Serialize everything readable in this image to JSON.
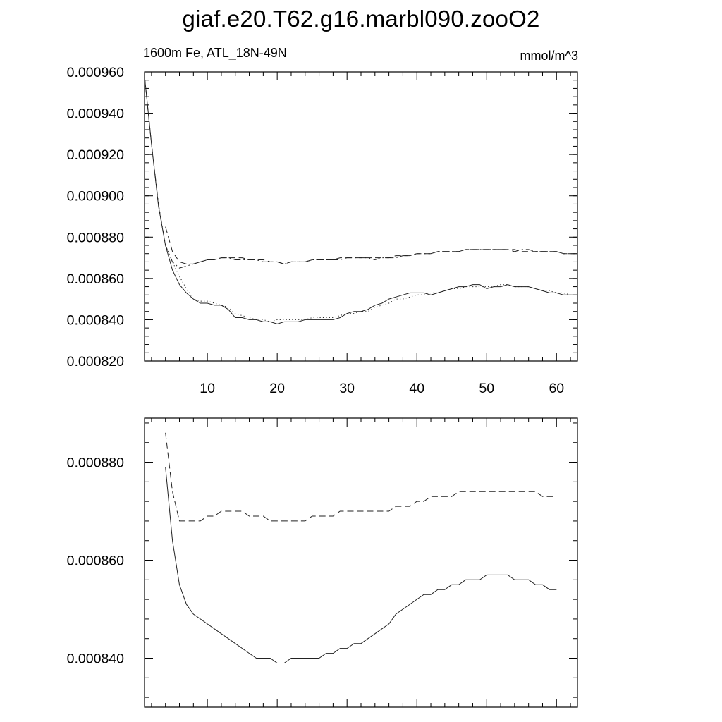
{
  "title": "giaf.e20.T62.g16.marbl090.zooO2",
  "subtitle_left": "1600m Fe, ATL_18N-49N",
  "subtitle_right": "mmol/m^3",
  "chart_data": [
    {
      "type": "line",
      "panel": "top",
      "xlim": [
        1,
        63
      ],
      "ylim": [
        0.00082,
        0.00096
      ],
      "x_ticks": [
        10,
        20,
        30,
        40,
        50,
        60
      ],
      "x_tick_labels": [
        "10",
        "20",
        "30",
        "40",
        "50",
        "60"
      ],
      "y_ticks": [
        0.00082,
        0.00084,
        0.00086,
        0.00088,
        0.0009,
        0.00092,
        0.00094,
        0.00096
      ],
      "y_tick_labels": [
        "0.000820",
        "0.000840",
        "0.000860",
        "0.000880",
        "0.000900",
        "0.000920",
        "0.000940",
        "0.000960"
      ],
      "series": [
        {
          "style": "solid",
          "x": [
            1,
            2,
            3,
            4,
            5,
            6,
            7,
            8,
            9,
            10,
            11,
            12,
            13,
            14,
            15,
            16,
            17,
            18,
            19,
            20,
            21,
            22,
            23,
            24,
            25,
            26,
            27,
            28,
            29,
            30,
            31,
            32,
            33,
            34,
            35,
            36,
            37,
            38,
            39,
            40,
            41,
            42,
            43,
            44,
            45,
            46,
            47,
            48,
            49,
            50,
            51,
            52,
            53,
            54,
            55,
            56,
            57,
            58,
            59,
            60,
            61,
            62,
            63
          ],
          "values": [
            0.000958,
            0.000925,
            0.000895,
            0.000876,
            0.000864,
            0.000857,
            0.000853,
            0.00085,
            0.000848,
            0.000848,
            0.000847,
            0.000847,
            0.000845,
            0.000841,
            0.000841,
            0.00084,
            0.00084,
            0.000839,
            0.000839,
            0.000838,
            0.000839,
            0.000839,
            0.000839,
            0.00084,
            0.00084,
            0.00084,
            0.00084,
            0.00084,
            0.000841,
            0.000843,
            0.000844,
            0.000844,
            0.000845,
            0.000847,
            0.000848,
            0.00085,
            0.000851,
            0.000852,
            0.000853,
            0.000853,
            0.000853,
            0.000852,
            0.000853,
            0.000854,
            0.000855,
            0.000856,
            0.000856,
            0.000857,
            0.000857,
            0.000855,
            0.000856,
            0.000856,
            0.000857,
            0.000856,
            0.000856,
            0.000856,
            0.000855,
            0.000854,
            0.000853,
            0.000853,
            0.000852,
            0.000852,
            0.000852
          ]
        },
        {
          "style": "dotted",
          "x": [
            4,
            5,
            6,
            7,
            8,
            9,
            10,
            11,
            12,
            13,
            14,
            15,
            16,
            17,
            18,
            19,
            20,
            21,
            22,
            23,
            24,
            25,
            26,
            27,
            28,
            29,
            30,
            31,
            32,
            33,
            34,
            35,
            36,
            37,
            38,
            39,
            40,
            41,
            42,
            43,
            44,
            45,
            46,
            47,
            48,
            49,
            50,
            51,
            52,
            53,
            54,
            55,
            56,
            57,
            58,
            59,
            60,
            61,
            62
          ],
          "values": [
            0.000876,
            0.000868,
            0.000861,
            0.000855,
            0.00085,
            0.000849,
            0.000849,
            0.000848,
            0.000847,
            0.000846,
            0.000843,
            0.000842,
            0.000841,
            0.00084,
            0.00084,
            0.000839,
            0.00084,
            0.00084,
            0.00084,
            0.00084,
            0.00084,
            0.000841,
            0.000841,
            0.000841,
            0.000841,
            0.000842,
            0.000843,
            0.000843,
            0.000844,
            0.000844,
            0.000846,
            0.000847,
            0.000848,
            0.00085,
            0.00085,
            0.000851,
            0.000852,
            0.000852,
            0.000853,
            0.000853,
            0.000854,
            0.000855,
            0.000855,
            0.000856,
            0.000856,
            0.000856,
            0.000856,
            0.000856,
            0.000857,
            0.000857,
            0.000856,
            0.000856,
            0.000856,
            0.000855,
            0.000854,
            0.000854,
            0.000853,
            0.000853,
            0.000852
          ]
        },
        {
          "style": "dashed",
          "x": [
            4,
            5,
            6,
            7,
            8,
            9,
            10,
            11,
            12,
            13,
            14,
            15,
            16,
            17,
            18,
            19,
            20,
            21,
            22,
            23,
            24,
            25,
            26,
            27,
            28,
            29,
            30,
            31,
            32,
            33,
            34,
            35,
            36,
            37,
            38,
            39,
            40,
            41,
            42,
            43,
            44,
            45,
            46,
            47,
            48,
            49,
            50,
            51,
            52,
            53,
            54,
            55,
            56,
            57,
            58,
            59,
            60,
            61,
            62,
            63
          ],
          "values": [
            0.000885,
            0.000873,
            0.000868,
            0.000867,
            0.000867,
            0.000868,
            0.000869,
            0.000869,
            0.00087,
            0.00087,
            0.00087,
            0.00087,
            0.000869,
            0.000869,
            0.000869,
            0.000868,
            0.000868,
            0.000867,
            0.000868,
            0.000868,
            0.000868,
            0.000869,
            0.000869,
            0.000869,
            0.000869,
            0.00087,
            0.00087,
            0.00087,
            0.00087,
            0.00087,
            0.00087,
            0.00087,
            0.00087,
            0.000871,
            0.000871,
            0.000871,
            0.000872,
            0.000872,
            0.000872,
            0.000873,
            0.000873,
            0.000873,
            0.000873,
            0.000874,
            0.000874,
            0.000874,
            0.000874,
            0.000874,
            0.000874,
            0.000874,
            0.000874,
            0.000873,
            0.000873,
            0.000873,
            0.000873,
            0.000873,
            0.000873,
            0.000872,
            0.000872,
            0.000872
          ]
        },
        {
          "style": "dashdot",
          "x": [
            1,
            2,
            3,
            4,
            5,
            6,
            7,
            8,
            9,
            10,
            11,
            12,
            13,
            14,
            15,
            16,
            17,
            18,
            19,
            20,
            21,
            22,
            23,
            24,
            25,
            26,
            27,
            28,
            29,
            30,
            31,
            32,
            33,
            34,
            35,
            36,
            37,
            38,
            39,
            40,
            41,
            42,
            43,
            44,
            45,
            46,
            47,
            48,
            49,
            50,
            51,
            52,
            53,
            54,
            55,
            56,
            57,
            58,
            59,
            60,
            61,
            62,
            63
          ],
          "values": [
            0.000958,
            0.000925,
            0.000896,
            0.000876,
            0.000868,
            0.000865,
            0.000866,
            0.000867,
            0.000868,
            0.000869,
            0.000869,
            0.00087,
            0.00087,
            0.000869,
            0.000869,
            0.000869,
            0.000869,
            0.000868,
            0.000868,
            0.000868,
            0.000867,
            0.000868,
            0.000868,
            0.000868,
            0.000869,
            0.000869,
            0.000869,
            0.000869,
            0.000869,
            0.00087,
            0.00087,
            0.00087,
            0.00087,
            0.000869,
            0.00087,
            0.00087,
            0.00087,
            0.000871,
            0.000871,
            0.000872,
            0.000872,
            0.000872,
            0.000873,
            0.000873,
            0.000873,
            0.000873,
            0.000874,
            0.000874,
            0.000874,
            0.000874,
            0.000874,
            0.000874,
            0.000874,
            0.000873,
            0.000874,
            0.000874,
            0.000873,
            0.000873,
            0.000873,
            0.000873,
            0.000872,
            0.000872,
            0.000872
          ]
        }
      ]
    },
    {
      "type": "line",
      "panel": "bottom",
      "xlim": [
        1,
        63
      ],
      "ylim": [
        0.00083,
        0.000889
      ],
      "x_ticks": [
        10,
        20,
        30,
        40,
        50,
        60
      ],
      "y_ticks": [
        0.00084,
        0.00086,
        0.00088
      ],
      "y_tick_labels": [
        "0.000840",
        "0.000860",
        "0.000880"
      ],
      "series": [
        {
          "style": "solid",
          "x": [
            4,
            5,
            6,
            7,
            8,
            9,
            10,
            11,
            12,
            13,
            14,
            15,
            16,
            17,
            18,
            19,
            20,
            21,
            22,
            23,
            24,
            25,
            26,
            27,
            28,
            29,
            30,
            31,
            32,
            33,
            34,
            35,
            36,
            37,
            38,
            39,
            40,
            41,
            42,
            43,
            44,
            45,
            46,
            47,
            48,
            49,
            50,
            51,
            52,
            53,
            54,
            55,
            56,
            57,
            58,
            59,
            60
          ],
          "values": [
            0.000879,
            0.000864,
            0.000855,
            0.000851,
            0.000849,
            0.000848,
            0.000847,
            0.000846,
            0.000845,
            0.000844,
            0.000843,
            0.000842,
            0.000841,
            0.00084,
            0.00084,
            0.00084,
            0.000839,
            0.000839,
            0.00084,
            0.00084,
            0.00084,
            0.00084,
            0.00084,
            0.000841,
            0.000841,
            0.000842,
            0.000842,
            0.000843,
            0.000843,
            0.000844,
            0.000845,
            0.000846,
            0.000847,
            0.000849,
            0.00085,
            0.000851,
            0.000852,
            0.000853,
            0.000853,
            0.000854,
            0.000854,
            0.000855,
            0.000855,
            0.000856,
            0.000856,
            0.000856,
            0.000857,
            0.000857,
            0.000857,
            0.000857,
            0.000856,
            0.000856,
            0.000856,
            0.000855,
            0.000855,
            0.000854,
            0.000854
          ]
        },
        {
          "style": "dashed",
          "x": [
            4,
            5,
            6,
            7,
            8,
            9,
            10,
            11,
            12,
            13,
            14,
            15,
            16,
            17,
            18,
            19,
            20,
            21,
            22,
            23,
            24,
            25,
            26,
            27,
            28,
            29,
            30,
            31,
            32,
            33,
            34,
            35,
            36,
            37,
            38,
            39,
            40,
            41,
            42,
            43,
            44,
            45,
            46,
            47,
            48,
            49,
            50,
            51,
            52,
            53,
            54,
            55,
            56,
            57,
            58,
            59,
            60
          ],
          "values": [
            0.000886,
            0.000874,
            0.000868,
            0.000868,
            0.000868,
            0.000868,
            0.000869,
            0.000869,
            0.00087,
            0.00087,
            0.00087,
            0.00087,
            0.000869,
            0.000869,
            0.000869,
            0.000868,
            0.000868,
            0.000868,
            0.000868,
            0.000868,
            0.000868,
            0.000869,
            0.000869,
            0.000869,
            0.000869,
            0.00087,
            0.00087,
            0.00087,
            0.00087,
            0.00087,
            0.00087,
            0.00087,
            0.00087,
            0.000871,
            0.000871,
            0.000871,
            0.000872,
            0.000872,
            0.000873,
            0.000873,
            0.000873,
            0.000873,
            0.000874,
            0.000874,
            0.000874,
            0.000874,
            0.000874,
            0.000874,
            0.000874,
            0.000874,
            0.000874,
            0.000874,
            0.000874,
            0.000874,
            0.000873,
            0.000873,
            0.000873
          ]
        }
      ]
    }
  ]
}
